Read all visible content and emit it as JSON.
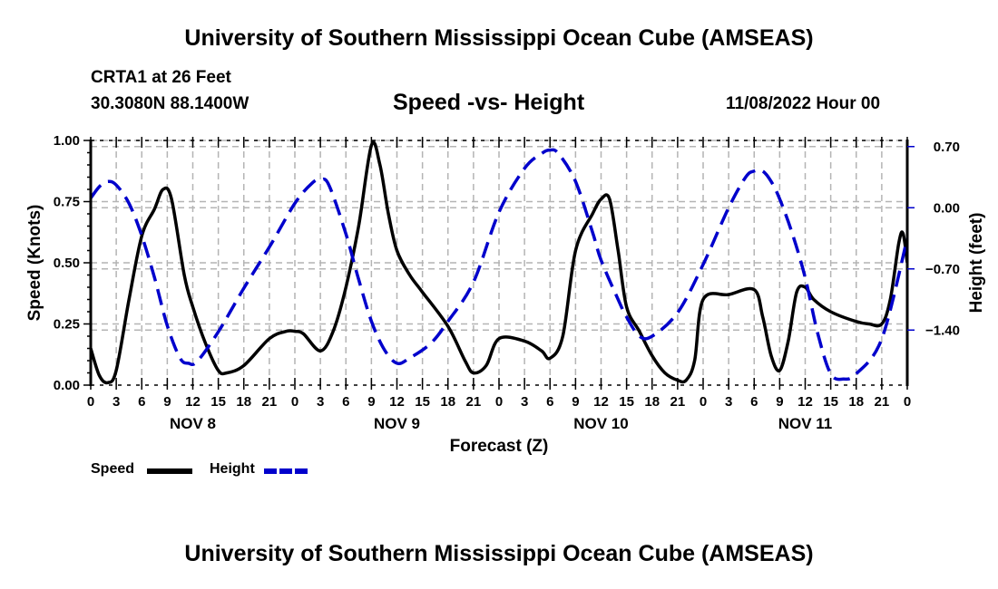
{
  "header": {
    "main_title": "University of Southern Mississippi Ocean Cube (AMSEAS)",
    "station": "CRTA1 at 26 Feet",
    "coordinates": "30.3080N  88.1400W",
    "subtitle": "Speed -vs- Height",
    "datetime": "11/08/2022 Hour 00"
  },
  "footer": {
    "title": "University of Southern Mississippi Ocean Cube (AMSEAS)"
  },
  "legend": {
    "speed_label": "Speed",
    "height_label": "Height"
  },
  "colors": {
    "speed": "#000000",
    "height": "#0000cc",
    "grid": "#b4b4b4"
  },
  "chart_data": {
    "type": "line",
    "title": "Speed -vs- Height",
    "xlabel": "Forecast (Z)",
    "ylabel": "Speed (Knots)",
    "y2label": "Height (feet)",
    "xlim": [
      0,
      96
    ],
    "ylim": [
      0,
      1
    ],
    "y2lim": [
      -2.03,
      0.77
    ],
    "grid": true,
    "legend_position": "bottom-left",
    "x_tick_labels": [
      "0",
      "3",
      "6",
      "9",
      "12",
      "15",
      "18",
      "21",
      "0",
      "3",
      "6",
      "9",
      "12",
      "15",
      "18",
      "21",
      "0",
      "3",
      "6",
      "9",
      "12",
      "15",
      "18",
      "21",
      "0",
      "3",
      "6",
      "9",
      "12",
      "15",
      "18",
      "21",
      "0"
    ],
    "day_labels": [
      {
        "label": "NOV 8",
        "hour": 12
      },
      {
        "label": "NOV 9",
        "hour": 36
      },
      {
        "label": "NOV 10",
        "hour": 60
      },
      {
        "label": "NOV 11",
        "hour": 84
      }
    ],
    "y_ticks": [
      0,
      0.25,
      0.5,
      0.75,
      1.0
    ],
    "y_tick_labels": [
      "0.00",
      "0.25",
      "0.50",
      "0.75",
      "1.00"
    ],
    "y2_ticks": [
      0.7,
      0.0,
      -0.7,
      -1.4
    ],
    "y2_tick_labels": [
      "0.70",
      "0.00",
      "−0.70",
      "−1.40"
    ],
    "series": [
      {
        "name": "Speed",
        "axis": "left",
        "style": "solid",
        "x": [
          0,
          1,
          2,
          3,
          4.5,
          6,
          7.5,
          8.5,
          9.5,
          11,
          12,
          13.5,
          15,
          16,
          18,
          21,
          23,
          24,
          25,
          27,
          28.5,
          30,
          31.5,
          33,
          34,
          35,
          36,
          37.5,
          39,
          42,
          44,
          45,
          46.5,
          48,
          51,
          53,
          54,
          55.5,
          57,
          59,
          60,
          61,
          62,
          63,
          64.5,
          66,
          67.5,
          69,
          70,
          71,
          72,
          75,
          78,
          79,
          80,
          81,
          82,
          83,
          84,
          85,
          87,
          90,
          91.5,
          93,
          94,
          95,
          95.5,
          96
        ],
        "values": [
          0.15,
          0.04,
          0.01,
          0.06,
          0.35,
          0.61,
          0.72,
          0.8,
          0.76,
          0.45,
          0.32,
          0.17,
          0.06,
          0.05,
          0.08,
          0.19,
          0.22,
          0.22,
          0.21,
          0.14,
          0.22,
          0.4,
          0.65,
          0.98,
          0.9,
          0.7,
          0.55,
          0.45,
          0.38,
          0.24,
          0.1,
          0.05,
          0.08,
          0.19,
          0.18,
          0.14,
          0.11,
          0.2,
          0.55,
          0.7,
          0.76,
          0.76,
          0.55,
          0.32,
          0.22,
          0.12,
          0.05,
          0.02,
          0.02,
          0.1,
          0.35,
          0.37,
          0.39,
          0.28,
          0.12,
          0.06,
          0.18,
          0.38,
          0.4,
          0.35,
          0.3,
          0.26,
          0.25,
          0.25,
          0.35,
          0.58,
          0.62,
          0.5
        ]
      },
      {
        "name": "Height",
        "axis": "right",
        "style": "dashed",
        "x": [
          0,
          1,
          2,
          3,
          4.5,
          6,
          7.5,
          9,
          10.5,
          11.5,
          12.5,
          15,
          18,
          21,
          24,
          26,
          27,
          28,
          30,
          31.5,
          33,
          34.5,
          36,
          37.5,
          40,
          42,
          45,
          48,
          51,
          53,
          54,
          55,
          57,
          59,
          60,
          62,
          63,
          64.5,
          66,
          69,
          72,
          75,
          77,
          78,
          79,
          80,
          81,
          82.5,
          84,
          85.5,
          87,
          88.5,
          90,
          93,
          96
        ],
        "values": [
          0.11,
          0.24,
          0.3,
          0.26,
          0.05,
          -0.32,
          -0.8,
          -1.35,
          -1.72,
          -1.78,
          -1.76,
          -1.42,
          -0.92,
          -0.45,
          0.05,
          0.28,
          0.32,
          0.26,
          -0.3,
          -0.82,
          -1.3,
          -1.62,
          -1.78,
          -1.72,
          -1.55,
          -1.3,
          -0.85,
          -0.05,
          0.45,
          0.62,
          0.66,
          0.62,
          0.3,
          -0.28,
          -0.6,
          -1.05,
          -1.25,
          -1.47,
          -1.47,
          -1.2,
          -0.65,
          0.0,
          0.35,
          0.42,
          0.42,
          0.3,
          0.1,
          -0.3,
          -0.8,
          -1.45,
          -1.9,
          -1.96,
          -1.9,
          -1.5,
          -0.35
        ]
      }
    ]
  }
}
